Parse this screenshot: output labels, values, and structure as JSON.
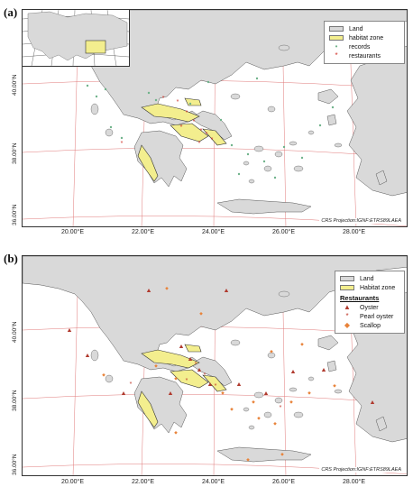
{
  "panel_a": {
    "label": "(a)",
    "lat_ticks": [
      "40.00°N",
      "38.00°N",
      "36.00°N"
    ],
    "lon_ticks": [
      "20.00°E",
      "22.00°E",
      "24.00°E",
      "26.00°E",
      "28.00°E"
    ],
    "legend": [
      {
        "label": "Land",
        "symbol": "swatch",
        "color": "#d9d9d9"
      },
      {
        "label": "habitat zone",
        "symbol": "swatch",
        "color": "#f3ee8e"
      },
      {
        "label": "records",
        "symbol": "circle",
        "color": "#6fb38a"
      },
      {
        "label": "restaurants",
        "symbol": "star",
        "color": "#d2322a"
      }
    ],
    "crs": "CRS Projection:IGNF:ETRS89LAEA"
  },
  "panel_b": {
    "label": "(b)",
    "lat_ticks": [
      "40.00°N",
      "38.00°N",
      "36.00°N"
    ],
    "lon_ticks": [
      "20.00°E",
      "22.00°E",
      "24.00°E",
      "26.00°E",
      "28.00°E"
    ],
    "legend": [
      {
        "label": "Land",
        "symbol": "swatch",
        "color": "#d9d9d9"
      },
      {
        "label": "Habitat zone",
        "symbol": "swatch",
        "color": "#f3ee8e"
      }
    ],
    "legend_heading": "Restaurants",
    "legend_restaurants": [
      {
        "label": "Oyster",
        "symbol": "triangle",
        "color": "#b03a2e"
      },
      {
        "label": "Pearl oyster",
        "symbol": "star",
        "color": "#c0392b"
      },
      {
        "label": "Scallop",
        "symbol": "diamond",
        "color": "#e8833a"
      }
    ],
    "crs": "CRS Projection:IGNF:ETRS89LAEA"
  },
  "colors": {
    "land": "#d9d9d9",
    "habitat": "#f3ee8e",
    "grid": "#e07a7a",
    "sea": "#ffffff"
  }
}
